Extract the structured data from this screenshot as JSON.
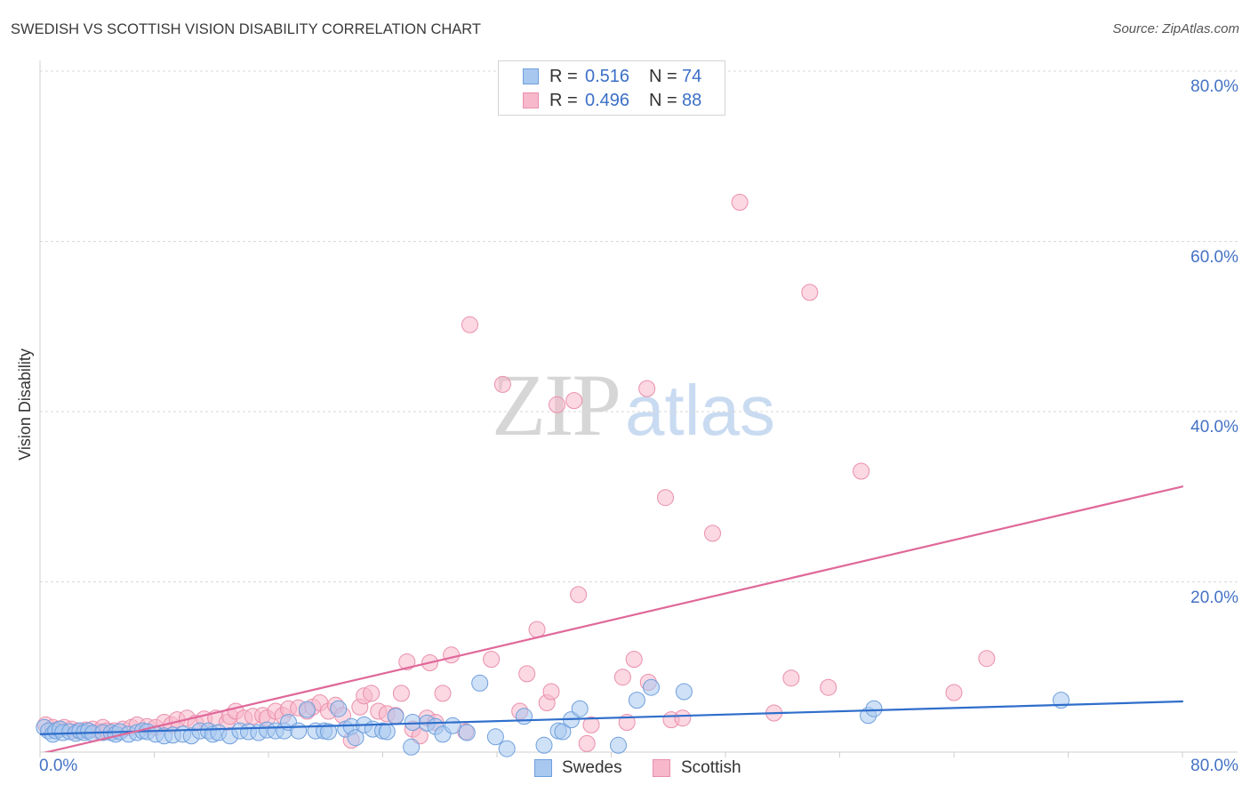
{
  "source": "Source: ZipAtlas.com",
  "watermark": {
    "left": "ZIP",
    "right": "atlas"
  },
  "legend_top": {
    "r_label": "R =",
    "n_label": "N ="
  },
  "chart_data": {
    "type": "scatter",
    "title": "SWEDISH VS SCOTTISH VISION DISABILITY CORRELATION CHART",
    "ylabel": "Vision Disability",
    "xlim": [
      0,
      80
    ],
    "ylim": [
      0,
      80
    ],
    "grid": true,
    "legend_position": "top",
    "x_axis": {
      "ticks": [
        0,
        8,
        16,
        24,
        32,
        40,
        48,
        56,
        64,
        72,
        80
      ],
      "tick_labels": [
        {
          "value": 0,
          "label": "0.0%"
        },
        {
          "value": 80,
          "label": "80.0%"
        }
      ]
    },
    "y_axis": {
      "gridlines": [
        20,
        40,
        60,
        80
      ],
      "tick_labels": [
        {
          "value": 80,
          "label": "80.0%"
        },
        {
          "value": 60,
          "label": "60.0%"
        },
        {
          "value": 40,
          "label": "40.0%"
        },
        {
          "value": 20,
          "label": "20.0%"
        }
      ]
    },
    "series": [
      {
        "name": "Swedes",
        "r": "0.516",
        "n": "74",
        "fill": "#a8c8f0",
        "stroke": "#6f9fdc",
        "line_color": "#2f6ecb",
        "trend_line": [
          [
            0,
            2.1
          ],
          [
            80,
            5.95
          ]
        ],
        "points": [
          [
            0.3,
            2.9
          ],
          [
            0.6,
            2.5
          ],
          [
            0.9,
            2.1
          ],
          [
            1.1,
            2.5
          ],
          [
            1.4,
            2.7
          ],
          [
            1.6,
            2.3
          ],
          [
            2.1,
            2.4
          ],
          [
            2.5,
            2.2
          ],
          [
            2.8,
            2.5
          ],
          [
            3.1,
            2.3
          ],
          [
            3.4,
            2.5
          ],
          [
            3.7,
            2.2
          ],
          [
            4.4,
            2.3
          ],
          [
            5.0,
            2.3
          ],
          [
            5.3,
            2.1
          ],
          [
            5.6,
            2.4
          ],
          [
            6.2,
            2.1
          ],
          [
            6.8,
            2.3
          ],
          [
            7.2,
            2.5
          ],
          [
            7.5,
            2.4
          ],
          [
            8.1,
            2.1
          ],
          [
            8.7,
            1.9
          ],
          [
            9.3,
            2.0
          ],
          [
            10.0,
            2.1
          ],
          [
            10.6,
            1.9
          ],
          [
            11.2,
            2.5
          ],
          [
            11.8,
            2.5
          ],
          [
            12.1,
            2.1
          ],
          [
            12.5,
            2.3
          ],
          [
            13.3,
            1.9
          ],
          [
            14.0,
            2.5
          ],
          [
            14.6,
            2.4
          ],
          [
            15.3,
            2.3
          ],
          [
            15.9,
            2.6
          ],
          [
            16.5,
            2.5
          ],
          [
            17.1,
            2.5
          ],
          [
            17.4,
            3.5
          ],
          [
            18.1,
            2.5
          ],
          [
            18.7,
            5.0
          ],
          [
            19.3,
            2.5
          ],
          [
            19.9,
            2.5
          ],
          [
            20.2,
            2.4
          ],
          [
            20.9,
            5.1
          ],
          [
            21.4,
            2.7
          ],
          [
            21.8,
            3.0
          ],
          [
            22.1,
            1.7
          ],
          [
            22.7,
            3.2
          ],
          [
            23.3,
            2.7
          ],
          [
            24.0,
            2.5
          ],
          [
            24.3,
            2.4
          ],
          [
            24.9,
            4.2
          ],
          [
            26.0,
            0.6
          ],
          [
            26.1,
            3.5
          ],
          [
            27.1,
            3.4
          ],
          [
            27.7,
            3.0
          ],
          [
            28.2,
            2.1
          ],
          [
            28.9,
            3.1
          ],
          [
            29.9,
            2.3
          ],
          [
            30.8,
            8.1
          ],
          [
            31.9,
            1.8
          ],
          [
            32.7,
            0.4
          ],
          [
            33.9,
            4.2
          ],
          [
            35.3,
            0.8
          ],
          [
            36.3,
            2.5
          ],
          [
            36.6,
            2.4
          ],
          [
            37.2,
            3.8
          ],
          [
            37.8,
            5.1
          ],
          [
            40.5,
            0.8
          ],
          [
            41.8,
            6.1
          ],
          [
            42.8,
            7.6
          ],
          [
            45.1,
            7.1
          ],
          [
            58.0,
            4.3
          ],
          [
            58.4,
            5.1
          ],
          [
            71.5,
            6.1
          ]
        ]
      },
      {
        "name": "Scottish",
        "r": "0.496",
        "n": "88",
        "fill": "#f7b8cb",
        "stroke": "#ea8fac",
        "line_color": "#e0689a",
        "trend_line": [
          [
            0,
            -0.2
          ],
          [
            80,
            31.2
          ]
        ],
        "points": [
          [
            0.4,
            3.2
          ],
          [
            0.9,
            2.9
          ],
          [
            1.3,
            2.7
          ],
          [
            1.7,
            2.9
          ],
          [
            2.2,
            2.7
          ],
          [
            2.7,
            2.5
          ],
          [
            3.2,
            2.6
          ],
          [
            3.7,
            2.7
          ],
          [
            4.2,
            2.4
          ],
          [
            4.4,
            2.9
          ],
          [
            4.7,
            2.5
          ],
          [
            5.2,
            2.5
          ],
          [
            5.8,
            2.7
          ],
          [
            6.4,
            2.9
          ],
          [
            6.8,
            3.2
          ],
          [
            7.5,
            3.0
          ],
          [
            8.1,
            2.9
          ],
          [
            8.7,
            3.5
          ],
          [
            9.2,
            3.2
          ],
          [
            9.6,
            3.8
          ],
          [
            10.3,
            4.0
          ],
          [
            10.9,
            3.4
          ],
          [
            11.5,
            3.9
          ],
          [
            12.3,
            4.0
          ],
          [
            13.1,
            3.5
          ],
          [
            13.3,
            4.2
          ],
          [
            13.7,
            4.8
          ],
          [
            14.3,
            4.0
          ],
          [
            14.9,
            4.2
          ],
          [
            15.6,
            4.3
          ],
          [
            15.9,
            4.0
          ],
          [
            16.5,
            4.8
          ],
          [
            17.0,
            4.3
          ],
          [
            17.4,
            5.1
          ],
          [
            18.1,
            5.2
          ],
          [
            18.7,
            4.8
          ],
          [
            19.1,
            5.3
          ],
          [
            19.6,
            5.8
          ],
          [
            20.2,
            4.8
          ],
          [
            20.7,
            5.5
          ],
          [
            21.2,
            4.3
          ],
          [
            21.8,
            1.4
          ],
          [
            22.4,
            5.3
          ],
          [
            22.7,
            6.6
          ],
          [
            23.2,
            6.9
          ],
          [
            23.7,
            4.8
          ],
          [
            24.3,
            4.5
          ],
          [
            24.9,
            4.3
          ],
          [
            25.3,
            6.9
          ],
          [
            25.7,
            10.6
          ],
          [
            26.1,
            2.7
          ],
          [
            26.6,
            1.9
          ],
          [
            27.1,
            4.0
          ],
          [
            27.3,
            10.5
          ],
          [
            27.7,
            3.5
          ],
          [
            28.2,
            6.9
          ],
          [
            28.8,
            11.4
          ],
          [
            29.8,
            2.4
          ],
          [
            30.1,
            50.2
          ],
          [
            31.6,
            10.9
          ],
          [
            32.4,
            43.2
          ],
          [
            33.6,
            4.8
          ],
          [
            34.1,
            9.2
          ],
          [
            34.8,
            14.4
          ],
          [
            35.5,
            5.8
          ],
          [
            35.8,
            7.1
          ],
          [
            36.2,
            40.8
          ],
          [
            37.4,
            41.3
          ],
          [
            37.7,
            18.5
          ],
          [
            38.3,
            1.0
          ],
          [
            38.6,
            3.2
          ],
          [
            40.8,
            8.8
          ],
          [
            41.1,
            3.5
          ],
          [
            41.6,
            10.9
          ],
          [
            42.5,
            42.7
          ],
          [
            42.6,
            8.2
          ],
          [
            43.8,
            29.9
          ],
          [
            44.2,
            3.8
          ],
          [
            45.0,
            4.0
          ],
          [
            47.1,
            25.7
          ],
          [
            49.0,
            64.6
          ],
          [
            51.4,
            4.6
          ],
          [
            52.6,
            8.7
          ],
          [
            53.9,
            54.0
          ],
          [
            55.2,
            7.6
          ],
          [
            57.5,
            33.0
          ],
          [
            64.0,
            7.0
          ],
          [
            66.3,
            11.0
          ]
        ]
      }
    ]
  }
}
